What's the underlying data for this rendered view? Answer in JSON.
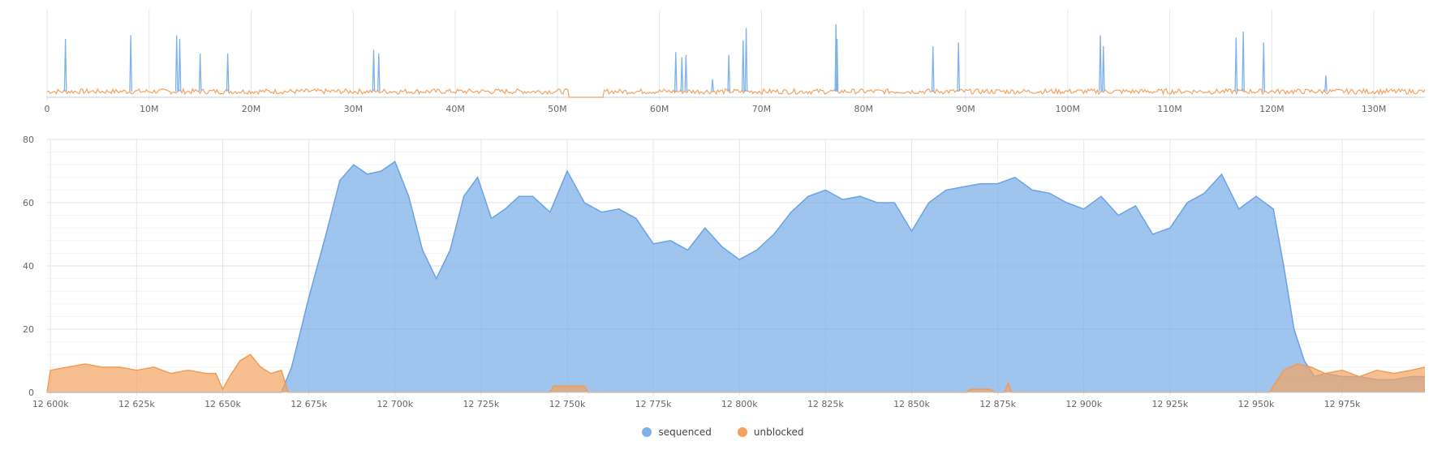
{
  "chart_data": [
    {
      "type": "line",
      "role": "overview",
      "xlim": [
        0,
        135000000
      ],
      "x_ticks": [
        0,
        10000000,
        20000000,
        30000000,
        40000000,
        50000000,
        60000000,
        70000000,
        80000000,
        90000000,
        100000000,
        110000000,
        120000000,
        130000000
      ],
      "x_tick_labels": [
        "0",
        "10M",
        "20M",
        "30M",
        "40M",
        "50M",
        "60M",
        "70M",
        "80M",
        "90M",
        "100M",
        "110M",
        "120M",
        "130M"
      ],
      "grid": true,
      "series": [
        {
          "name": "sequenced",
          "color": "#7fb2ea",
          "spikes": [
            [
              1800000,
              0.8
            ],
            [
              8200000,
              0.85
            ],
            [
              12700000,
              0.85
            ],
            [
              13000000,
              0.8
            ],
            [
              15000000,
              0.6
            ],
            [
              17700000,
              0.6
            ],
            [
              32000000,
              0.65
            ],
            [
              32500000,
              0.6
            ],
            [
              61600000,
              0.62
            ],
            [
              62200000,
              0.55
            ],
            [
              62600000,
              0.58
            ],
            [
              65200000,
              0.25
            ],
            [
              66800000,
              0.58
            ],
            [
              68200000,
              0.78
            ],
            [
              68500000,
              0.95
            ],
            [
              77300000,
              1.0
            ],
            [
              77400000,
              0.8
            ],
            [
              86800000,
              0.7
            ],
            [
              89300000,
              0.75
            ],
            [
              103200000,
              0.85
            ],
            [
              103500000,
              0.7
            ],
            [
              116500000,
              0.82
            ],
            [
              117200000,
              0.9
            ],
            [
              119200000,
              0.75
            ],
            [
              125300000,
              0.3
            ]
          ]
        },
        {
          "name": "unblocked",
          "color": "#f4a261",
          "baseline_level": 0.08,
          "gaps": [
            [
              51000000,
              54500000
            ]
          ]
        }
      ]
    },
    {
      "type": "area",
      "role": "detail",
      "xlim": [
        12599000,
        12999000
      ],
      "ylim": [
        0,
        80
      ],
      "x_ticks": [
        12600000,
        12625000,
        12650000,
        12675000,
        12700000,
        12725000,
        12750000,
        12775000,
        12800000,
        12825000,
        12850000,
        12875000,
        12900000,
        12925000,
        12950000,
        12975000
      ],
      "x_tick_labels": [
        "12 600k",
        "12 625k",
        "12 650k",
        "12 675k",
        "12 700k",
        "12 725k",
        "12 750k",
        "12 775k",
        "12 800k",
        "12 825k",
        "12 850k",
        "12 875k",
        "12 900k",
        "12 925k",
        "12 950k",
        "12 975k"
      ],
      "y_ticks": [
        0,
        20,
        40,
        60,
        80
      ],
      "y_tick_labels": [
        "0",
        "20",
        "40",
        "60",
        "80"
      ],
      "grid": true,
      "series": [
        {
          "name": "sequenced",
          "color": "#7fb2ea",
          "x": [
            12599000,
            12667000,
            12670000,
            12675000,
            12680000,
            12684000,
            12688000,
            12692000,
            12696000,
            12700000,
            12704000,
            12708000,
            12712000,
            12716000,
            12720000,
            12724000,
            12728000,
            12732000,
            12736000,
            12740000,
            12745000,
            12750000,
            12755000,
            12760000,
            12765000,
            12770000,
            12775000,
            12780000,
            12785000,
            12790000,
            12795000,
            12800000,
            12805000,
            12810000,
            12815000,
            12820000,
            12825000,
            12830000,
            12835000,
            12840000,
            12845000,
            12850000,
            12855000,
            12860000,
            12865000,
            12870000,
            12875000,
            12880000,
            12885000,
            12890000,
            12895000,
            12900000,
            12905000,
            12910000,
            12915000,
            12920000,
            12925000,
            12930000,
            12935000,
            12940000,
            12945000,
            12950000,
            12955000,
            12958000,
            12961000,
            12964000,
            12967000,
            12970000,
            12975000,
            12980000,
            12985000,
            12990000,
            12995000,
            12999000
          ],
          "values": [
            0,
            0,
            8,
            30,
            50,
            67,
            72,
            69,
            70,
            73,
            62,
            45,
            36,
            45,
            62,
            68,
            55,
            58,
            62,
            62,
            57,
            70,
            60,
            57,
            58,
            55,
            47,
            48,
            45,
            52,
            46,
            42,
            45,
            50,
            57,
            62,
            64,
            61,
            62,
            60,
            60,
            51,
            60,
            64,
            65,
            66,
            66,
            68,
            64,
            63,
            60,
            58,
            62,
            56,
            59,
            50,
            52,
            60,
            63,
            69,
            58,
            62,
            58,
            40,
            20,
            10,
            5,
            6,
            5,
            5,
            4,
            4,
            5,
            5
          ]
        },
        {
          "name": "unblocked",
          "color": "#f4a261",
          "x": [
            12599000,
            12600000,
            12605000,
            12610000,
            12615000,
            12620000,
            12625000,
            12630000,
            12635000,
            12640000,
            12645000,
            12648000,
            12650000,
            12652000,
            12655000,
            12658000,
            12661000,
            12664000,
            12667000,
            12669000,
            12745000,
            12746000,
            12755000,
            12756000,
            12866000,
            12867000,
            12873000,
            12874000,
            12877000,
            12878000,
            12879000,
            12954000,
            12955000,
            12958000,
            12962000,
            12966000,
            12970000,
            12975000,
            12980000,
            12985000,
            12990000,
            12995000,
            12999000
          ],
          "values": [
            0,
            7,
            8,
            9,
            8,
            8,
            7,
            8,
            6,
            7,
            6,
            6,
            1,
            5,
            10,
            12,
            8,
            6,
            7,
            0,
            0,
            2,
            2,
            0,
            0,
            1,
            1,
            0,
            0,
            3,
            0,
            0,
            2,
            7,
            9,
            8,
            6,
            7,
            5,
            7,
            6,
            7,
            8
          ]
        }
      ]
    }
  ],
  "legend": [
    {
      "label": "sequenced",
      "color": "#7fb2ea"
    },
    {
      "label": "unblocked",
      "color": "#f4a261"
    }
  ]
}
